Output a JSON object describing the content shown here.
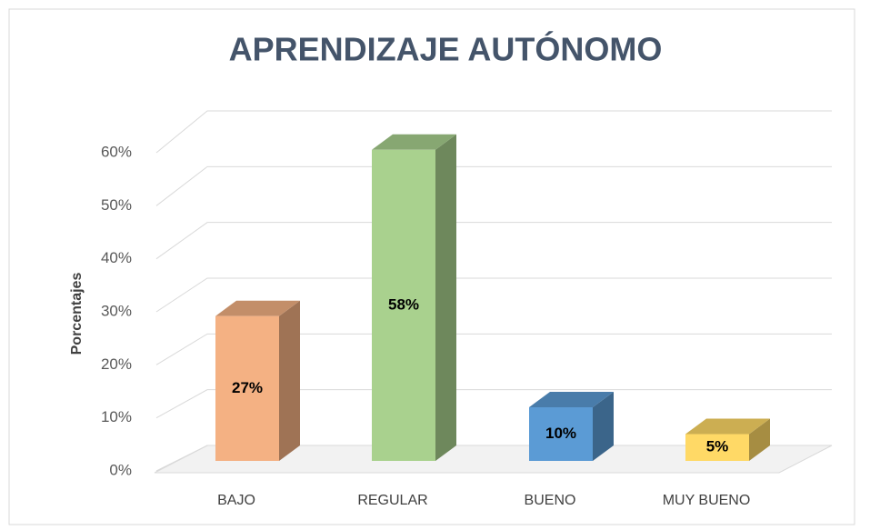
{
  "chart_data": {
    "type": "bar3d",
    "title": "APRENDIZAJE AUTÓNOMO",
    "y_label": "Porcentajes",
    "categories": [
      "BAJO",
      "REGULAR",
      "BUENO",
      "MUY BUENO"
    ],
    "values": [
      27,
      58,
      10,
      5
    ],
    "value_labels": [
      "27%",
      "58%",
      "10%",
      "5%"
    ],
    "colors": [
      "#f4b183",
      "#a9d18e",
      "#5b9bd5",
      "#ffd966"
    ],
    "ylim": [
      0,
      60
    ],
    "yticks": [
      {
        "value": 0,
        "label": "0%"
      },
      {
        "value": 10,
        "label": "10%"
      },
      {
        "value": 20,
        "label": "20%"
      },
      {
        "value": 30,
        "label": "30%"
      },
      {
        "value": 40,
        "label": "40%"
      },
      {
        "value": 50,
        "label": "50%"
      },
      {
        "value": 60,
        "label": "60%"
      }
    ],
    "grid": true
  }
}
